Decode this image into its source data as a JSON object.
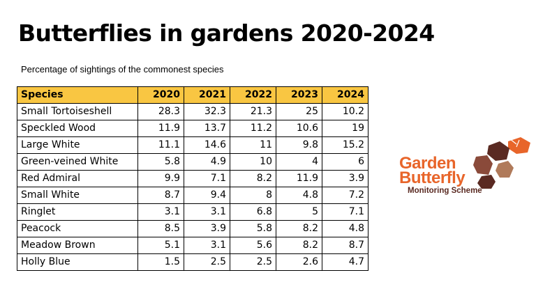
{
  "title": "Butterflies in gardens 2020-2024",
  "subtitle": "Percentage of sightings of the commonest species",
  "table": {
    "headers": [
      "Species",
      "2020",
      "2021",
      "2022",
      "2023",
      "2024"
    ],
    "rows": [
      [
        "Small Tortoiseshell",
        "28.3",
        "32.3",
        "21.3",
        "25",
        "10.2"
      ],
      [
        "Speckled Wood",
        "11.9",
        "13.7",
        "11.2",
        "10.6",
        "19"
      ],
      [
        "Large White",
        "11.1",
        "14.6",
        "11",
        "9.8",
        "15.2"
      ],
      [
        "Green-veined White",
        "5.8",
        "4.9",
        "10",
        "4",
        "6"
      ],
      [
        "Red Admiral",
        "9.9",
        "7.1",
        "8.2",
        "11.9",
        "3.9"
      ],
      [
        "Small White",
        "8.7",
        "9.4",
        "8",
        "4.8",
        "7.2"
      ],
      [
        "Ringlet",
        "3.1",
        "3.1",
        "6.8",
        "5",
        "7.1"
      ],
      [
        "Peacock",
        "8.5",
        "3.9",
        "5.8",
        "8.2",
        "4.8"
      ],
      [
        "Meadow Brown",
        "5.1",
        "3.1",
        "5.6",
        "8.2",
        "8.7"
      ],
      [
        "Holly Blue",
        "1.5",
        "2.5",
        "2.5",
        "2.6",
        "4.7"
      ]
    ]
  },
  "logo": {
    "line1": "Garden",
    "line2": "Butterfly",
    "line3": "Monitoring Scheme"
  },
  "colors": {
    "header_fill": "#f9c642",
    "logo_orange": "#e8652a",
    "logo_brown": "#5a2a22"
  }
}
